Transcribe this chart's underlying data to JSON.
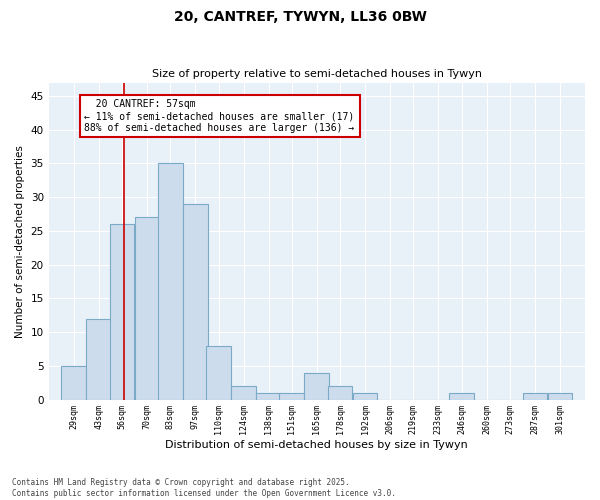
{
  "title1": "20, CANTREF, TYWYN, LL36 0BW",
  "title2": "Size of property relative to semi-detached houses in Tywyn",
  "xlabel": "Distribution of semi-detached houses by size in Tywyn",
  "ylabel": "Number of semi-detached properties",
  "bins": [
    29,
    43,
    56,
    70,
    83,
    97,
    110,
    124,
    138,
    151,
    165,
    178,
    192,
    206,
    219,
    233,
    246,
    260,
    273,
    287,
    301
  ],
  "values": [
    5,
    12,
    26,
    27,
    35,
    29,
    8,
    2,
    1,
    1,
    4,
    2,
    1,
    0,
    0,
    0,
    1,
    0,
    0,
    1,
    1
  ],
  "bar_color": "#ccdcec",
  "bar_edge_color": "#7aaac8",
  "ylim": [
    0,
    47
  ],
  "yticks": [
    0,
    5,
    10,
    15,
    20,
    25,
    30,
    35,
    40,
    45
  ],
  "property_size": 57,
  "property_label": "20 CANTREF: 57sqm",
  "pct_smaller": 11,
  "pct_larger": 88,
  "n_smaller": 17,
  "n_larger": 136,
  "annotation_line_color": "#cc0000",
  "annotation_box_color": "#cc0000",
  "footer1": "Contains HM Land Registry data © Crown copyright and database right 2025.",
  "footer2": "Contains public sector information licensed under the Open Government Licence v3.0.",
  "bg_color": "#ffffff",
  "plot_bg_color": "#e8f0f8",
  "grid_color": "#ffffff"
}
